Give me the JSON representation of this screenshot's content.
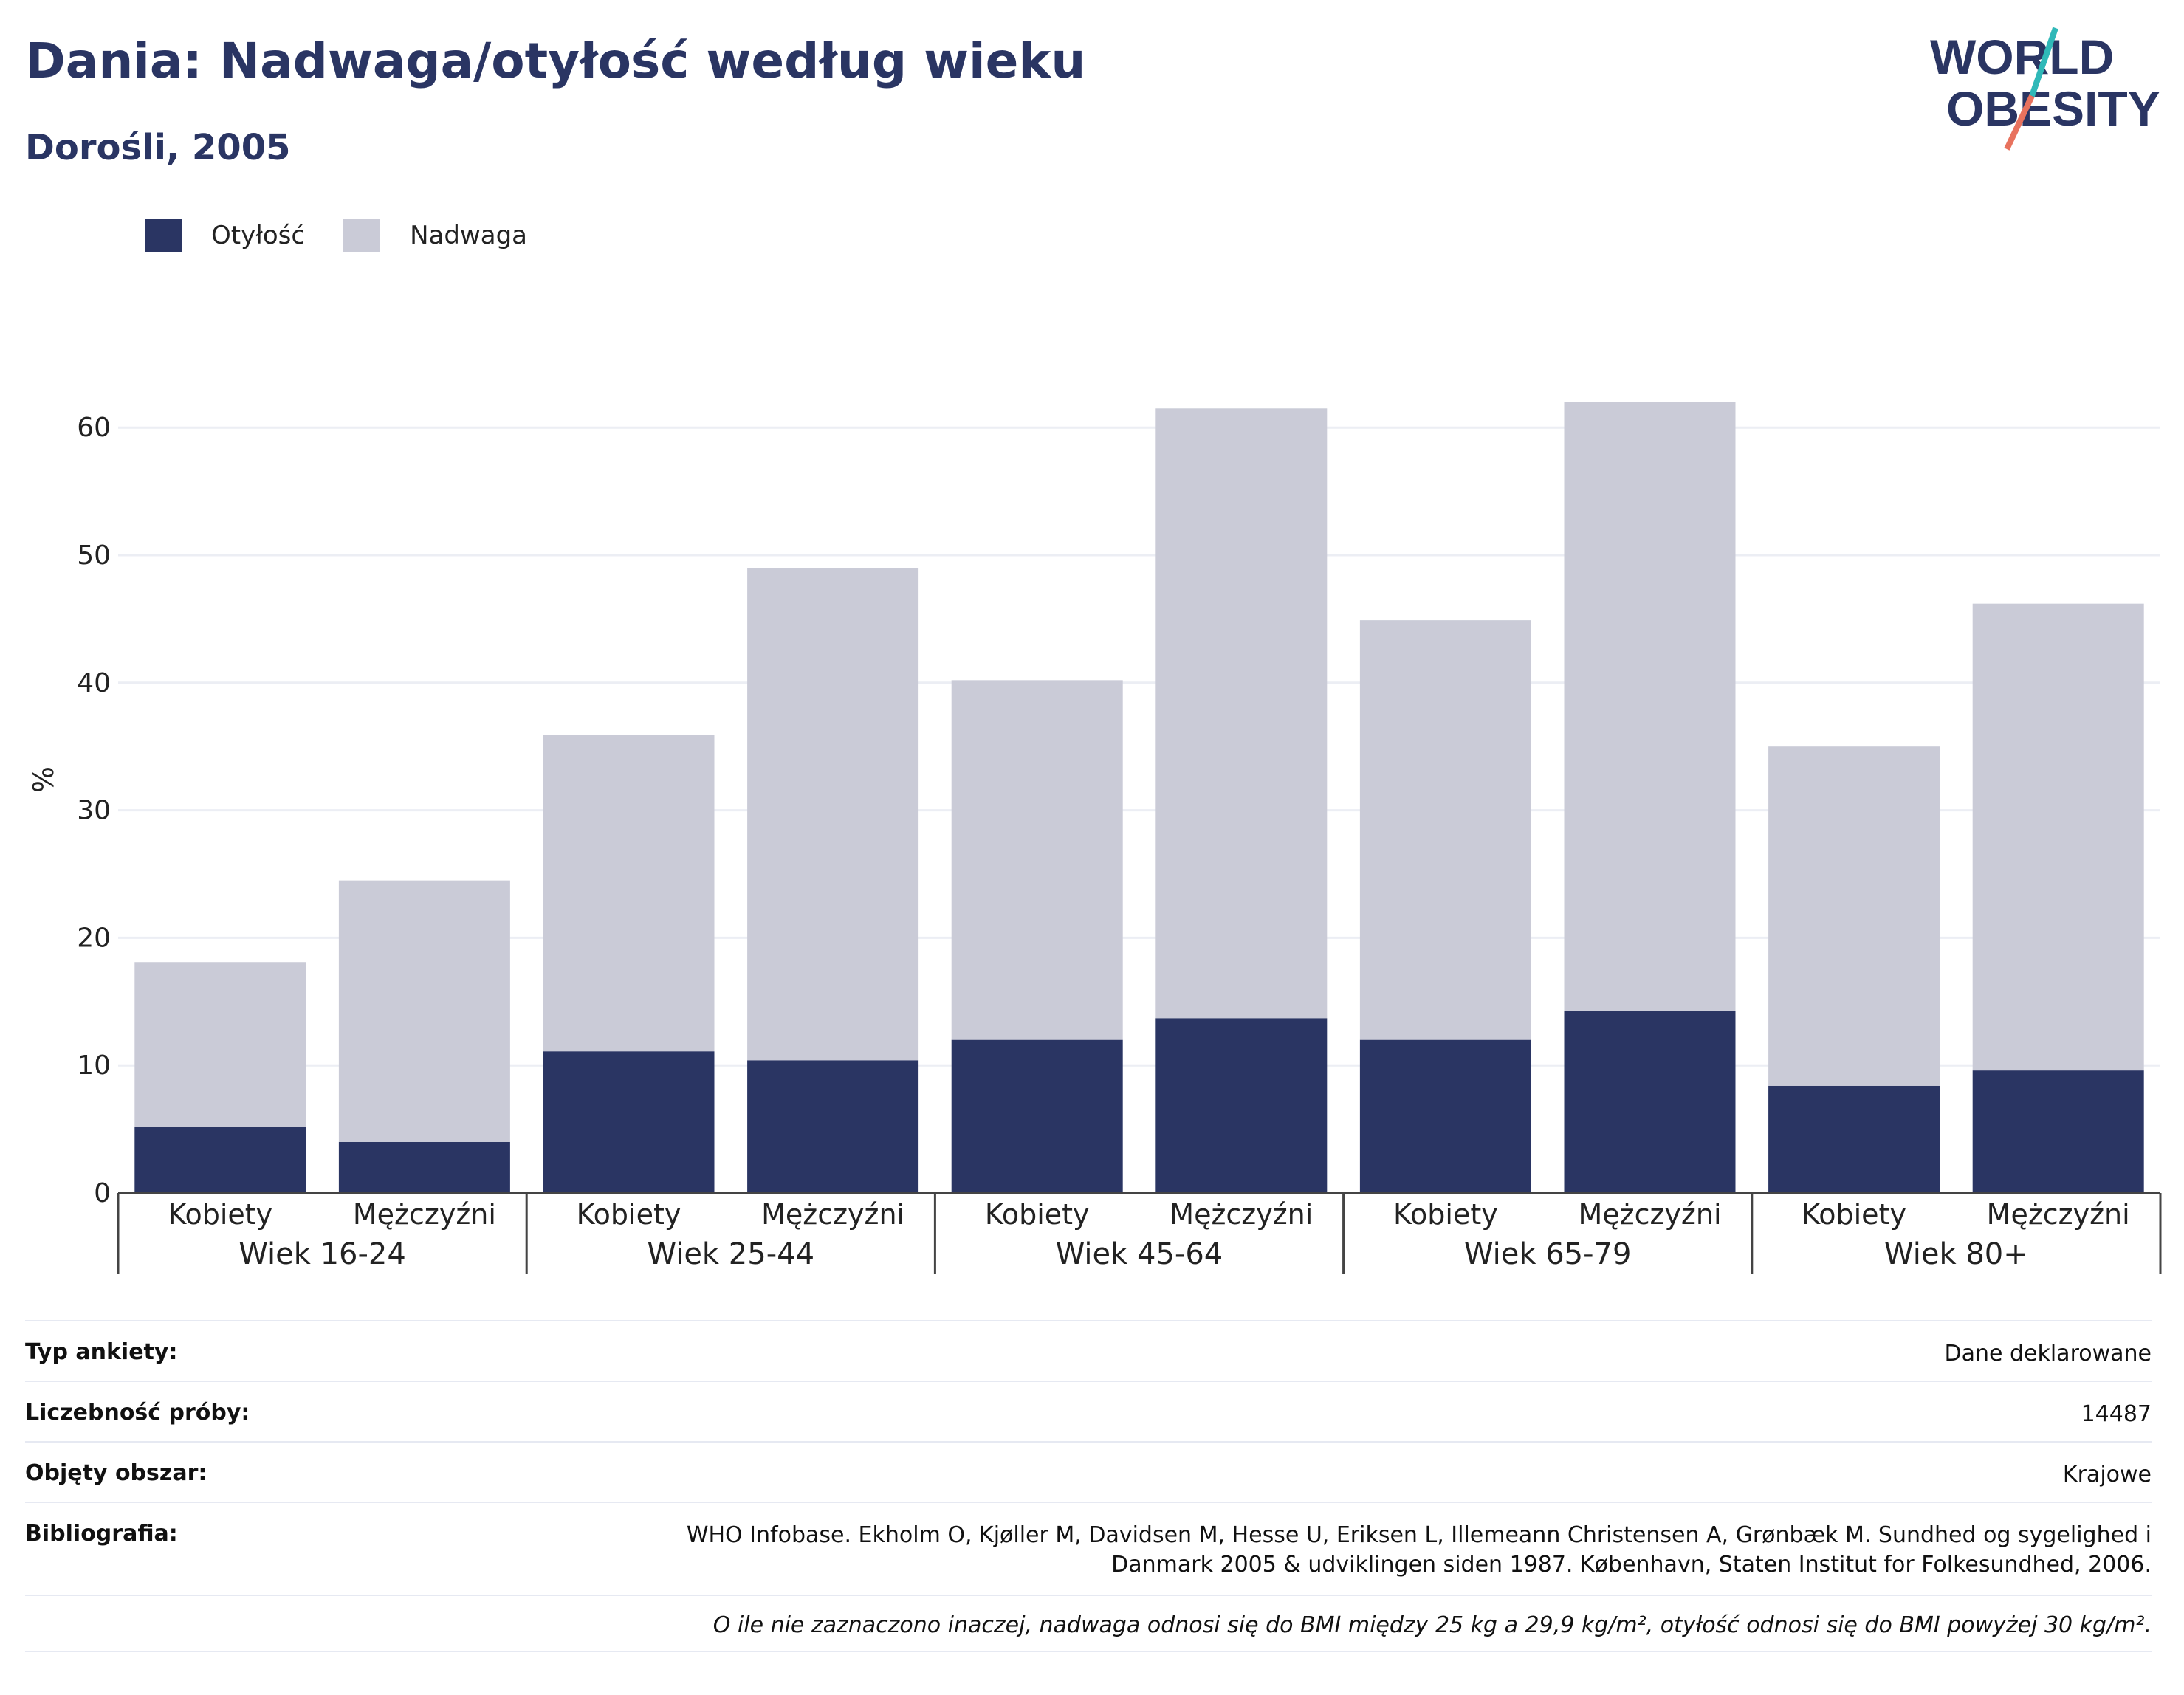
{
  "header": {
    "title": "Dania: Nadwaga/otyłość według wieku",
    "subtitle": "Dorośli, 2005",
    "logo_line1": "WORLD",
    "logo_line2": "OBESITY"
  },
  "legend": [
    {
      "label": "Otyłość",
      "color": "#2a3563"
    },
    {
      "label": "Nadwaga",
      "color": "#cacbd7"
    }
  ],
  "chart_data": {
    "type": "bar",
    "stacked": true,
    "ylabel": "%",
    "ylim": [
      0,
      65
    ],
    "yticks": [
      0,
      10,
      20,
      30,
      40,
      50,
      60
    ],
    "grid": true,
    "legend_position": "top-left",
    "groups": [
      "Wiek 16-24",
      "Wiek 25-44",
      "Wiek 45-64",
      "Wiek 65-79",
      "Wiek 80+"
    ],
    "categories": [
      "Kobiety",
      "Mężczyźni",
      "Kobiety",
      "Mężczyźni",
      "Kobiety",
      "Mężczyźni",
      "Kobiety",
      "Mężczyźni",
      "Kobiety",
      "Mężczyźni"
    ],
    "series": [
      {
        "name": "Otyłość",
        "color": "#2a3563",
        "values": [
          5.2,
          4.0,
          11.1,
          10.4,
          12.0,
          13.7,
          12.0,
          14.3,
          8.4,
          9.6
        ]
      },
      {
        "name": "Nadwaga",
        "color": "#cacbd7",
        "values": [
          12.9,
          20.5,
          24.8,
          38.6,
          28.2,
          47.8,
          32.9,
          47.7,
          26.6,
          36.6
        ]
      }
    ]
  },
  "info": {
    "rows": [
      {
        "label": "Typ ankiety:",
        "value": "Dane deklarowane"
      },
      {
        "label": "Liczebność próby:",
        "value": "14487"
      },
      {
        "label": "Objęty obszar:",
        "value": "Krajowe"
      },
      {
        "label": "Bibliografia:",
        "value_line1": "WHO Infobase. Ekholm O, Kjøller M, Davidsen M, Hesse U, Eriksen L, Illemeann Christensen A, Grønbæk M. Sundhed og sygelighed i",
        "value_line2": "Danmark 2005 & udviklingen siden 1987. København, Staten Institut for Folkesundhed, 2006."
      }
    ],
    "note": "O ile nie zaznaczono inaczej, nadwaga odnosi się do BMI między 25 kg a 29,9 kg/m², otyłość odnosi się do BMI powyżej 30 kg/m²."
  }
}
